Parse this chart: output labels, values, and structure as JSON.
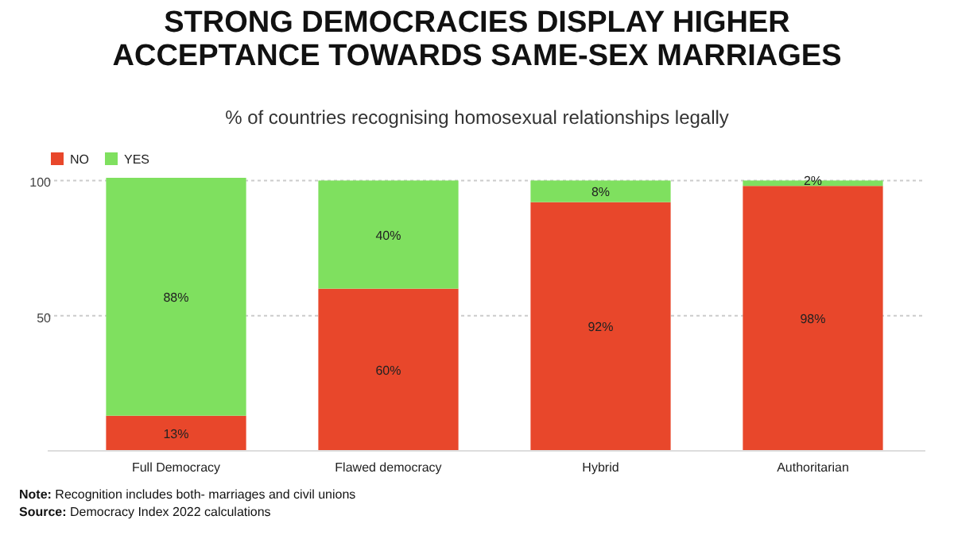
{
  "chart_data": {
    "type": "bar",
    "title": "STRONG DEMOCRACIES DISPLAY HIGHER\nACCEPTANCE TOWARDS SAME-SEX MARRIAGES",
    "subtitle": "% of countries recognising homosexual relationships legally",
    "categories": [
      "Full Democracy",
      "Flawed democracy",
      "Hybrid",
      "Authoritarian"
    ],
    "stacked": true,
    "series": [
      {
        "name": "NO",
        "color": "#e8472b",
        "values": [
          13,
          60,
          92,
          98
        ],
        "value_labels": [
          "13%",
          "60%",
          "92%",
          "98%"
        ]
      },
      {
        "name": "YES",
        "color": "#7fe05f",
        "values": [
          88,
          40,
          8,
          2
        ],
        "value_labels": [
          "88%",
          "40%",
          "8%",
          "2%"
        ]
      }
    ],
    "ylim": [
      0,
      101
    ],
    "yticks": [
      50,
      100
    ],
    "grid": "y",
    "legend": "top left",
    "annotations": [
      "Note: Recognition includes both- marriages and civil unions",
      "Source: Democracy Index 2022 calculations"
    ]
  }
}
